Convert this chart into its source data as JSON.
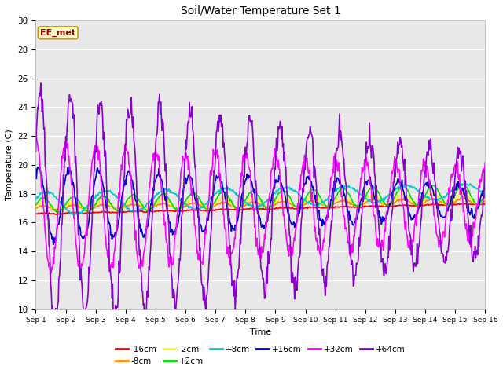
{
  "title": "Soil/Water Temperature Set 1",
  "xlabel": "Time",
  "ylabel": "Temperature (C)",
  "ylim": [
    10,
    30
  ],
  "xlim": [
    0,
    15
  ],
  "plot_bg": "#e8e8e8",
  "fig_bg": "#ffffff",
  "annotation": "EE_met",
  "annotation_color": "#990000",
  "annotation_bg": "#ffffcc",
  "annotation_border": "#cc9900",
  "series_order": [
    "-16cm",
    "-8cm",
    "-2cm",
    "+2cm",
    "+8cm",
    "+16cm",
    "+32cm",
    "+64cm"
  ],
  "series_colors": {
    "-16cm": "#ff0000",
    "-8cm": "#ff8800",
    "-2cm": "#ffff00",
    "+2cm": "#00dd00",
    "+8cm": "#00cccc",
    "+16cm": "#0000cc",
    "+32cm": "#ff00ff",
    "+64cm": "#8800cc"
  },
  "lw": 1.2,
  "xtick_labels": [
    "Sep 1",
    "Sep 2",
    "Sep 3",
    "Sep 4",
    "Sep 5",
    "Sep 6",
    "Sep 7",
    "Sep 8",
    "Sep 9",
    "Sep 10",
    "Sep 11",
    "Sep 12",
    "Sep 13",
    "Sep 14",
    "Sep 15",
    "Sep 16"
  ],
  "ytick_labels": [
    10,
    12,
    14,
    16,
    18,
    20,
    22,
    24,
    26,
    28,
    30
  ],
  "legend_rows": 2,
  "legend_ncol": 6
}
